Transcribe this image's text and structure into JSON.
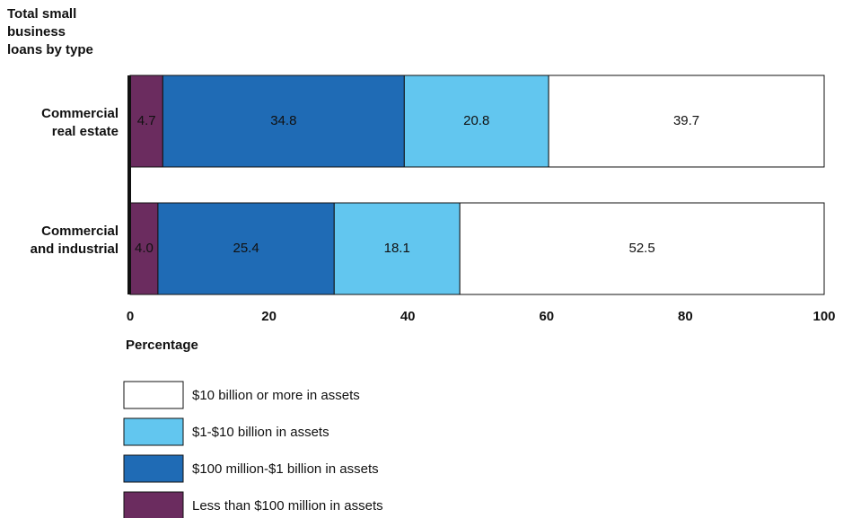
{
  "chart_data": {
    "type": "stacked_barh",
    "y_axis_title": "Total small business loans by type",
    "x_axis_title": "Percentage",
    "categories": [
      "Commercial real estate",
      "Commercial and industrial"
    ],
    "series": [
      {
        "name": "Less than $100 million in assets",
        "color": "#6b2c5f",
        "values": [
          4.7,
          4.0
        ],
        "value_labels": [
          "4.7",
          "4.0"
        ]
      },
      {
        "name": "$100 million-$1 billion in assets",
        "color": "#1f6bb5",
        "values": [
          34.8,
          25.4
        ],
        "value_labels": [
          "34.8",
          "25.4"
        ]
      },
      {
        "name": "$1-$10 billion in assets",
        "color": "#62c6ef",
        "values": [
          20.8,
          18.1
        ],
        "value_labels": [
          "20.8",
          "18.1"
        ]
      },
      {
        "name": "$10 billion or more in assets",
        "color": "#ffffff",
        "values": [
          39.7,
          52.5
        ],
        "value_labels": [
          "39.7",
          "52.5"
        ]
      }
    ],
    "xlim": [
      0,
      100
    ],
    "xticks": [
      0,
      20,
      40,
      60,
      80,
      100
    ]
  }
}
